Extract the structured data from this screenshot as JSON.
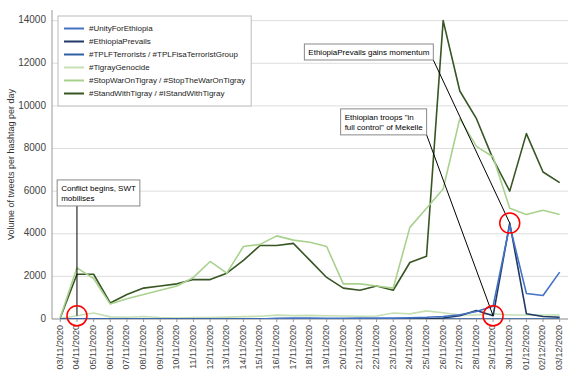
{
  "chart_data": {
    "type": "line",
    "categories": [
      "03/11/2020",
      "04/11/2020",
      "05/11/2020",
      "06/11/2020",
      "07/11/2020",
      "08/11/2020",
      "09/11/2020",
      "10/11/2020",
      "11/11/2020",
      "12/11/2020",
      "13/11/2020",
      "14/11/2020",
      "15/11/2020",
      "16/11/2020",
      "17/11/2020",
      "18/11/2020",
      "19/11/2020",
      "20/11/2020",
      "21/11/2020",
      "22/11/2020",
      "23/11/2020",
      "24/11/2020",
      "25/11/2020",
      "26/11/2020",
      "27/11/2020",
      "28/11/2020",
      "29/11/2020",
      "30/11/2020",
      "01/12/2020",
      "02/12/2020",
      "03/12/2020"
    ],
    "series": [
      {
        "name": "#UnityForEthiopia",
        "color": "#4472c4",
        "values": [
          0,
          0,
          0,
          0,
          0,
          0,
          0,
          0,
          0,
          0,
          0,
          0,
          0,
          30,
          50,
          40,
          30,
          30,
          40,
          40,
          40,
          60,
          80,
          120,
          200,
          350,
          600,
          4400,
          1200,
          1100,
          2200
        ]
      },
      {
        "name": "#EthiopiaPrevails",
        "color": "#1f3864",
        "values": [
          0,
          0,
          0,
          0,
          0,
          0,
          0,
          0,
          0,
          0,
          0,
          0,
          0,
          0,
          0,
          0,
          0,
          0,
          0,
          0,
          0,
          0,
          0,
          50,
          150,
          400,
          150,
          4500,
          250,
          120,
          80
        ]
      },
      {
        "name": "#TPLFTerrorists / #TPLFisaTerroristGroup",
        "color": "#2e5fa3",
        "values": [
          0,
          0,
          0,
          0,
          0,
          0,
          0,
          0,
          0,
          0,
          0,
          0,
          0,
          0,
          0,
          0,
          0,
          0,
          0,
          0,
          0,
          0,
          0,
          0,
          0,
          0,
          0,
          0,
          0,
          0,
          0
        ]
      },
      {
        "name": "#TigrayGenocide",
        "color": "#c6e0b4",
        "values": [
          30,
          150,
          280,
          100,
          80,
          120,
          70,
          50,
          70,
          70,
          90,
          110,
          130,
          180,
          160,
          170,
          150,
          140,
          130,
          140,
          280,
          240,
          380,
          290,
          190,
          190,
          240,
          190,
          190,
          190,
          190
        ]
      },
      {
        "name": "#StopWarOnTigray / #StopTheWarOnTigray",
        "color": "#a9d18e",
        "values": [
          80,
          2400,
          1900,
          700,
          950,
          1150,
          1350,
          1550,
          1950,
          2700,
          2150,
          3400,
          3500,
          3900,
          3700,
          3600,
          3400,
          1650,
          1650,
          1550,
          1450,
          4300,
          5200,
          6100,
          9400,
          8100,
          7600,
          5200,
          4900,
          5100,
          4900
        ]
      },
      {
        "name": "#StandWithTigray / #IStandWithTigray",
        "color": "#375623",
        "values": [
          60,
          2100,
          2100,
          750,
          1150,
          1450,
          1550,
          1650,
          1850,
          1850,
          2150,
          2750,
          3450,
          3450,
          3550,
          2750,
          1950,
          1450,
          1350,
          1550,
          1350,
          2650,
          2950,
          14000,
          10700,
          9400,
          7500,
          6000,
          8700,
          6900,
          6400
        ]
      }
    ],
    "ylabel": "Volume of tweets per hashtag per day",
    "ylim": [
      0,
      14500
    ],
    "yticks": [
      0,
      2000,
      4000,
      6000,
      8000,
      10000,
      12000,
      14000
    ],
    "grid": true,
    "legend": "upper left",
    "annotations": [
      {
        "text": "Conflict begins, SWT\nmobilises",
        "x": "04/11/2020",
        "y": 150
      },
      {
        "text": "Ethiopian troops \"in\nfull control\" of Mekelle",
        "x": "29/11/2020",
        "y": 150
      },
      {
        "text": "EthiopiaPrevails gains momentum",
        "x": "30/11/2020",
        "y": 4500
      }
    ]
  }
}
